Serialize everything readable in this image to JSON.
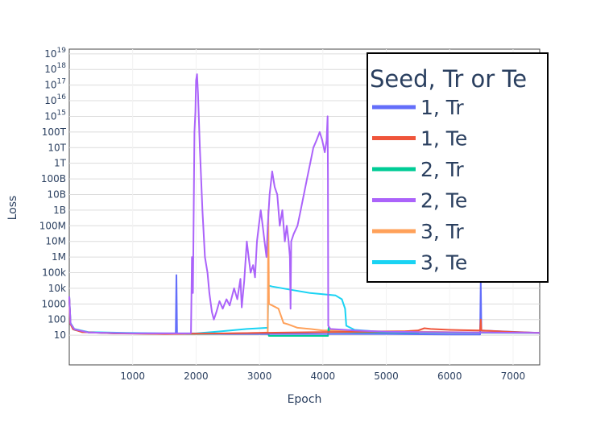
{
  "chart_data": {
    "type": "line",
    "xlabel": "Epoch",
    "ylabel": "Loss",
    "y_scale": "log",
    "xlim": [
      0,
      7420
    ],
    "ylim_log10": [
      -0.9,
      19.3
    ],
    "grid": true,
    "legend_title": "Seed, Tr or Te",
    "legend_position": "top-right",
    "x_ticks": [
      {
        "value": 1000,
        "label": "1000"
      },
      {
        "value": 2000,
        "label": "2000"
      },
      {
        "value": 3000,
        "label": "3000"
      },
      {
        "value": 4000,
        "label": "4000"
      },
      {
        "value": 5000,
        "label": "5000"
      },
      {
        "value": 6000,
        "label": "6000"
      },
      {
        "value": 7000,
        "label": "7000"
      }
    ],
    "y_ticks": [
      {
        "exp": 1,
        "label": "10"
      },
      {
        "exp": 2,
        "label": "100"
      },
      {
        "exp": 3,
        "label": "1000"
      },
      {
        "exp": 4,
        "label": "10k"
      },
      {
        "exp": 5,
        "label": "100k"
      },
      {
        "exp": 6,
        "label": "1M"
      },
      {
        "exp": 7,
        "label": "10M"
      },
      {
        "exp": 8,
        "label": "100M"
      },
      {
        "exp": 9,
        "label": "1B"
      },
      {
        "exp": 10,
        "label": "10B"
      },
      {
        "exp": 11,
        "label": "100B"
      },
      {
        "exp": 12,
        "label": "1T"
      },
      {
        "exp": 13,
        "label": "10T"
      },
      {
        "exp": 14,
        "label": "100T"
      },
      {
        "exp": 15,
        "base": "10",
        "sup": "15"
      },
      {
        "exp": 16,
        "base": "10",
        "sup": "16"
      },
      {
        "exp": 17,
        "base": "10",
        "sup": "17"
      },
      {
        "exp": 18,
        "base": "10",
        "sup": "18"
      },
      {
        "exp": 19,
        "base": "10",
        "sup": "19"
      }
    ],
    "series": [
      {
        "name": "1, Tr",
        "color": "#636efa",
        "points": [
          [
            0,
            3000
          ],
          [
            15,
            60
          ],
          [
            60,
            25
          ],
          [
            200,
            16
          ],
          [
            700,
            13
          ],
          [
            1680,
            13
          ],
          [
            1690,
            70000
          ],
          [
            1700,
            13
          ],
          [
            2500,
            12
          ],
          [
            3000,
            12
          ],
          [
            4000,
            12
          ],
          [
            5000,
            12
          ],
          [
            6000,
            11
          ],
          [
            6480,
            11
          ],
          [
            6490,
            30000
          ],
          [
            6500,
            20
          ],
          [
            7420,
            14
          ]
        ]
      },
      {
        "name": "1, Te",
        "color": "#ef553b",
        "points": [
          [
            0,
            2500
          ],
          [
            15,
            55
          ],
          [
            60,
            24
          ],
          [
            200,
            16
          ],
          [
            700,
            13
          ],
          [
            1500,
            12
          ],
          [
            2500,
            13
          ],
          [
            3000,
            14
          ],
          [
            3500,
            15
          ],
          [
            4000,
            16
          ],
          [
            4800,
            17
          ],
          [
            5300,
            18
          ],
          [
            5500,
            20
          ],
          [
            5600,
            28
          ],
          [
            5700,
            25
          ],
          [
            6000,
            22
          ],
          [
            6200,
            21
          ],
          [
            6480,
            20
          ],
          [
            6490,
            100
          ],
          [
            6500,
            20
          ],
          [
            7000,
            16
          ],
          [
            7420,
            14
          ]
        ]
      },
      {
        "name": "2, Tr",
        "color": "#00cc96",
        "points": [
          [
            0,
            2000
          ],
          [
            20,
            50
          ],
          [
            80,
            22
          ],
          [
            300,
            15
          ],
          [
            900,
            13
          ],
          [
            2000,
            12
          ],
          [
            3000,
            12
          ],
          [
            3140,
            12
          ],
          [
            3150,
            9
          ],
          [
            4080,
            9
          ],
          [
            4090,
            30
          ],
          [
            4100,
            16
          ],
          [
            5000,
            15
          ],
          [
            7420,
            14
          ]
        ]
      },
      {
        "name": "2, Te",
        "color": "#ab63fa",
        "points": [
          [
            0,
            3000
          ],
          [
            20,
            55
          ],
          [
            80,
            24
          ],
          [
            300,
            15
          ],
          [
            1000,
            13
          ],
          [
            1900,
            13
          ],
          [
            1920,
            14
          ],
          [
            1935,
            1000000
          ],
          [
            1950,
            5000
          ],
          [
            1960,
            100000000
          ],
          [
            1975,
            100000000000000
          ],
          [
            1990,
            2000000000000000
          ],
          [
            2000,
            200000000000000000
          ],
          [
            2015,
            500000000000000000
          ],
          [
            2030,
            30000000000000000
          ],
          [
            2060,
            10000000000000
          ],
          [
            2100,
            1000000000
          ],
          [
            2140,
            1000000
          ],
          [
            2180,
            100000
          ],
          [
            2210,
            5000
          ],
          [
            2250,
            300
          ],
          [
            2280,
            100
          ],
          [
            2320,
            300
          ],
          [
            2370,
            1500
          ],
          [
            2420,
            500
          ],
          [
            2480,
            2000
          ],
          [
            2530,
            800
          ],
          [
            2600,
            10000
          ],
          [
            2650,
            2000
          ],
          [
            2700,
            40000
          ],
          [
            2720,
            600
          ],
          [
            2760,
            30000
          ],
          [
            2800,
            10000000
          ],
          [
            2830,
            1000000
          ],
          [
            2860,
            100000
          ],
          [
            2900,
            300000
          ],
          [
            2930,
            50000
          ],
          [
            2960,
            10000000
          ],
          [
            2990,
            100000000
          ],
          [
            3020,
            1000000000
          ],
          [
            3050,
            100000000
          ],
          [
            3080,
            10000000
          ],
          [
            3110,
            1000000
          ],
          [
            3130,
            100000000
          ],
          [
            3160,
            10000000000
          ],
          [
            3200,
            300000000000
          ],
          [
            3240,
            30000000000
          ],
          [
            3280,
            10000000000
          ],
          [
            3320,
            100000000
          ],
          [
            3360,
            1000000000
          ],
          [
            3400,
            10000000
          ],
          [
            3430,
            100000000
          ],
          [
            3460,
            10000000
          ],
          [
            3480,
            1000000
          ],
          [
            3490,
            500
          ],
          [
            3500,
            10000000
          ],
          [
            3540,
            30000000
          ],
          [
            3600,
            100000000
          ],
          [
            3650,
            1000000000
          ],
          [
            3700,
            10000000000
          ],
          [
            3750,
            100000000000
          ],
          [
            3800,
            1000000000000
          ],
          [
            3850,
            10000000000000
          ],
          [
            3900,
            30000000000000
          ],
          [
            3950,
            100000000000000
          ],
          [
            3990,
            30000000000000
          ],
          [
            4030,
            5000000000000
          ],
          [
            4060,
            30000000000000
          ],
          [
            4075,
            1000000000000000
          ],
          [
            4080,
            200000000000
          ],
          [
            4085,
            40
          ],
          [
            4120,
            25
          ],
          [
            4500,
            20
          ],
          [
            5000,
            17
          ],
          [
            5500,
            16
          ],
          [
            7420,
            14
          ]
        ]
      },
      {
        "name": "3, Tr",
        "color": "#ffa15a",
        "points": [
          [
            0,
            2500
          ],
          [
            20,
            55
          ],
          [
            80,
            24
          ],
          [
            300,
            15
          ],
          [
            900,
            13
          ],
          [
            1500,
            12
          ],
          [
            2000,
            12
          ],
          [
            3000,
            14
          ],
          [
            3130,
            15
          ],
          [
            3140,
            1000000000
          ],
          [
            3150,
            1000
          ],
          [
            3200,
            800
          ],
          [
            3300,
            500
          ],
          [
            3380,
            60
          ],
          [
            3450,
            50
          ],
          [
            3600,
            30
          ],
          [
            3800,
            25
          ],
          [
            4000,
            20
          ],
          [
            4200,
            20
          ],
          [
            4400,
            19
          ],
          [
            4800,
            18
          ],
          [
            5300,
            18
          ],
          [
            5500,
            17
          ],
          [
            6000,
            16
          ],
          [
            7420,
            14
          ]
        ]
      },
      {
        "name": "3, Te",
        "color": "#19d3f3",
        "points": [
          [
            0,
            2800
          ],
          [
            20,
            60
          ],
          [
            80,
            25
          ],
          [
            300,
            16
          ],
          [
            900,
            14
          ],
          [
            1500,
            13
          ],
          [
            2000,
            13
          ],
          [
            2400,
            18
          ],
          [
            2800,
            25
          ],
          [
            3000,
            28
          ],
          [
            3130,
            30
          ],
          [
            3140,
            15000
          ],
          [
            3200,
            13000
          ],
          [
            3500,
            8000
          ],
          [
            3800,
            5000
          ],
          [
            4050,
            4000
          ],
          [
            4200,
            3500
          ],
          [
            4300,
            2000
          ],
          [
            4350,
            500
          ],
          [
            4370,
            40
          ],
          [
            4500,
            22
          ],
          [
            4800,
            18
          ],
          [
            5200,
            15
          ],
          [
            5500,
            13
          ],
          [
            5510,
            12
          ]
        ]
      }
    ]
  }
}
